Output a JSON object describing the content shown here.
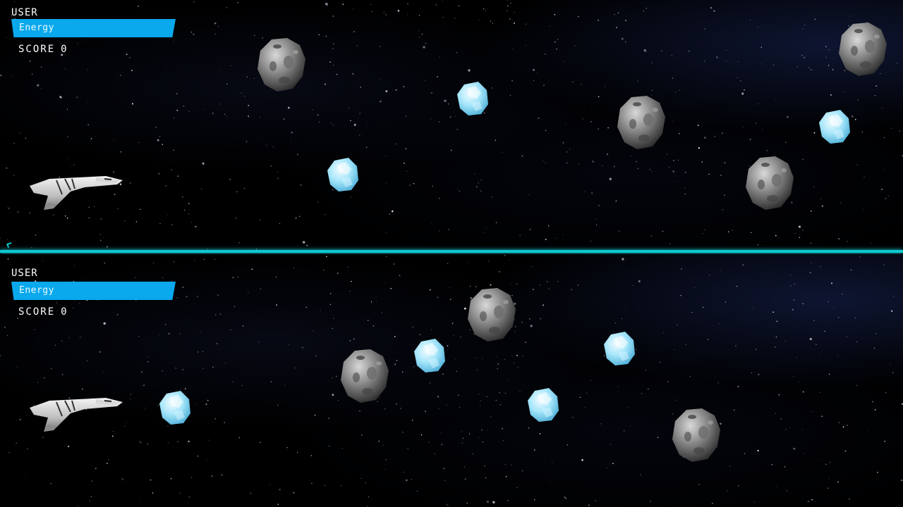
{
  "player_top": {
    "user_label": "USER",
    "energy_label": "Energy",
    "score_label": "SCORE",
    "score_value": "0"
  },
  "player_bottom": {
    "user_label": "USER",
    "energy_label": "Energy",
    "score_label": "SCORE",
    "score_value": "0"
  },
  "colors": {
    "energy_bar": "#0aa8ec",
    "divider": "#10c8d0",
    "crystal": "#8fdcf5",
    "asteroid": "#8a8a8a",
    "background": "#000000"
  },
  "icons": {
    "ship": "spaceship-icon",
    "asteroid": "asteroid-icon",
    "crystal": "ice-crystal-icon"
  }
}
